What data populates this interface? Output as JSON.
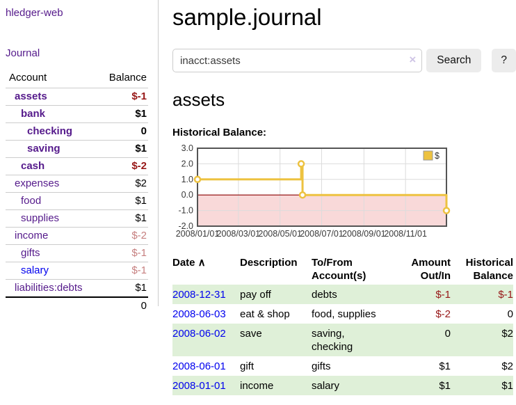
{
  "app": {
    "brand": "hledger-web",
    "nav_journal": "Journal"
  },
  "sidebar": {
    "accounts_header": {
      "account": "Account",
      "balance": "Balance"
    },
    "accounts": [
      {
        "name": "assets",
        "balance": "$-1",
        "depth": 0,
        "in_scope": true,
        "balance_tone": "neg"
      },
      {
        "name": "bank",
        "balance": "$1",
        "depth": 1,
        "in_scope": true,
        "balance_tone": "pos"
      },
      {
        "name": "checking",
        "balance": "0",
        "depth": 2,
        "in_scope": true,
        "balance_tone": "pos"
      },
      {
        "name": "saving",
        "balance": "$1",
        "depth": 2,
        "in_scope": true,
        "balance_tone": "pos"
      },
      {
        "name": "cash",
        "balance": "$-2",
        "depth": 1,
        "in_scope": true,
        "balance_tone": "neg"
      },
      {
        "name": "expenses",
        "balance": "$2",
        "depth": 0,
        "in_scope": false,
        "balance_tone": "pos"
      },
      {
        "name": "food",
        "balance": "$1",
        "depth": 1,
        "in_scope": false,
        "balance_tone": "pos"
      },
      {
        "name": "supplies",
        "balance": "$1",
        "depth": 1,
        "in_scope": false,
        "balance_tone": "pos"
      },
      {
        "name": "income",
        "balance": "$-2",
        "depth": 0,
        "in_scope": false,
        "balance_tone": "soft-neg"
      },
      {
        "name": "gifts",
        "balance": "$-1",
        "depth": 1,
        "in_scope": false,
        "balance_tone": "soft-neg"
      },
      {
        "name": "salary",
        "balance": "$-1",
        "depth": 1,
        "in_scope": false,
        "balance_tone": "soft-neg",
        "link_tone": "unvisited"
      },
      {
        "name": "liabilities:debts",
        "balance": "$1",
        "depth": 0,
        "in_scope": false,
        "balance_tone": "pos"
      }
    ],
    "total": "0"
  },
  "header": {
    "title": "sample.journal"
  },
  "search": {
    "value": "inacct:assets",
    "clear_icon": "×",
    "button_label": "Search",
    "help_label": "?"
  },
  "main": {
    "account_title": "assets",
    "chart_label": "Historical Balance:"
  },
  "chart_data": {
    "type": "line",
    "step": true,
    "title": "Historical Balance:",
    "series": [
      {
        "name": "$",
        "color": "#edc240",
        "points": [
          [
            "2008-01-01",
            1
          ],
          [
            "2008-06-01",
            2
          ],
          [
            "2008-06-03",
            0
          ],
          [
            "2008-12-31",
            -1
          ]
        ]
      }
    ],
    "xlim": [
      "2008-01-01",
      "2008-12-31"
    ],
    "ylim": [
      -2.0,
      3.0
    ],
    "yticks": [
      3.0,
      2.0,
      1.0,
      0.0,
      -1.0,
      -2.0
    ],
    "ytick_labels": [
      "3.0",
      "2.0",
      "1.0",
      "0.0",
      "-1.0",
      "-2.0"
    ],
    "xticks": [
      "2008-01-01",
      "2008-03-01",
      "2008-05-01",
      "2008-07-01",
      "2008-09-01",
      "2008-11-01"
    ],
    "xtick_labels": [
      "2008/01/01",
      "2008/03/01",
      "2008/05/01",
      "2008/07/01",
      "2008/09/01",
      "2008/11/01"
    ],
    "legend": {
      "position": "top-right",
      "label": "$"
    },
    "grid": true,
    "negative_fill": "#f9d9d9",
    "zero_line_color": "#8b0000"
  },
  "register": {
    "columns": [
      {
        "label": "Date",
        "align": "left",
        "sort_icon": "∧"
      },
      {
        "label": "Description",
        "align": "left"
      },
      {
        "label": "To/From Account(s)",
        "align": "left"
      },
      {
        "label": "Amount Out/In",
        "align": "right"
      },
      {
        "label": "Historical Balance",
        "align": "right"
      }
    ],
    "rows": [
      {
        "date": "2008-12-31",
        "description": "pay off",
        "accounts": "debts",
        "amount": "$-1",
        "amount_neg": true,
        "balance": "$-1",
        "balance_neg": true
      },
      {
        "date": "2008-06-03",
        "description": "eat & shop",
        "accounts": "food, supplies",
        "amount": "$-2",
        "amount_neg": true,
        "balance": "0",
        "balance_neg": false
      },
      {
        "date": "2008-06-02",
        "description": "save",
        "accounts": "saving, checking",
        "amount": "0",
        "amount_neg": false,
        "balance": "$2",
        "balance_neg": false
      },
      {
        "date": "2008-06-01",
        "description": "gift",
        "accounts": "gifts",
        "amount": "$1",
        "amount_neg": false,
        "balance": "$2",
        "balance_neg": false
      },
      {
        "date": "2008-01-01",
        "description": "income",
        "accounts": "salary",
        "amount": "$1",
        "amount_neg": false,
        "balance": "$1",
        "balance_neg": false
      }
    ]
  },
  "colors": {
    "link_purple": "#551a8b",
    "link_blue": "#0000ee",
    "negative_strong": "#971717",
    "negative_soft": "#c67f7f",
    "row_green": "#dff0d8",
    "chart_line": "#edc240",
    "chart_negative_fill": "#f9d9d9",
    "zero_line": "#8b0000",
    "button_gray": "#ececec"
  }
}
